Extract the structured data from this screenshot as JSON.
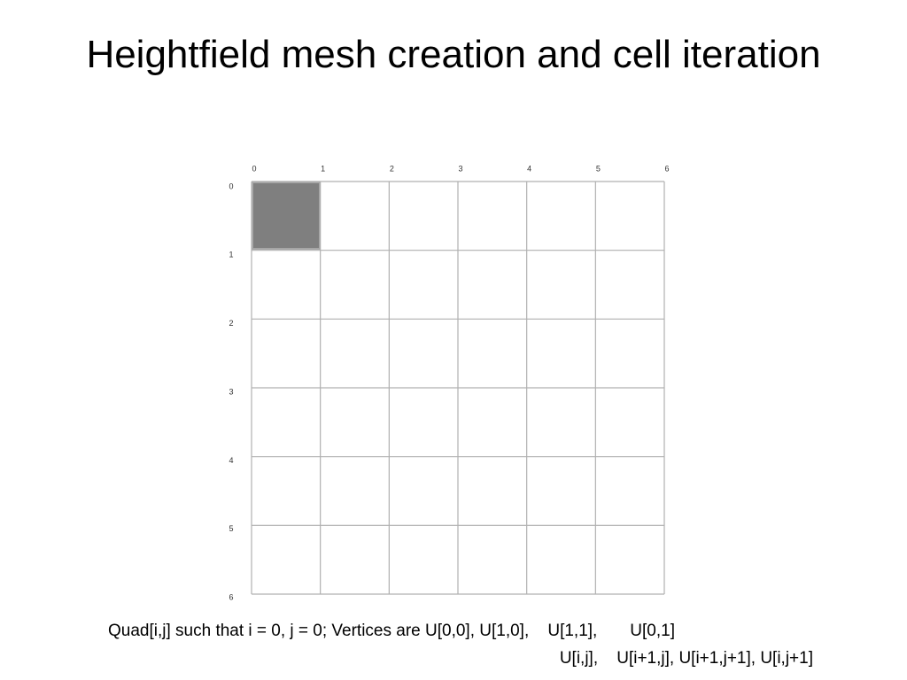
{
  "title": "Heightfield mesh creation and cell iteration",
  "grid": {
    "column_labels": [
      "0",
      "1",
      "2",
      "3",
      "4",
      "5",
      "6"
    ],
    "row_labels": [
      "0",
      "1",
      "2",
      "3",
      "4",
      "5",
      "6"
    ]
  },
  "caption": {
    "line1": "Quad[i,j] such that i = 0, j = 0; Vertices are U[0,0], U[1,0],    U[1,1],       U[0,1]",
    "line2": "U[i,j],    U[i+1,j], U[i+1,j+1], U[i,j+1]"
  }
}
